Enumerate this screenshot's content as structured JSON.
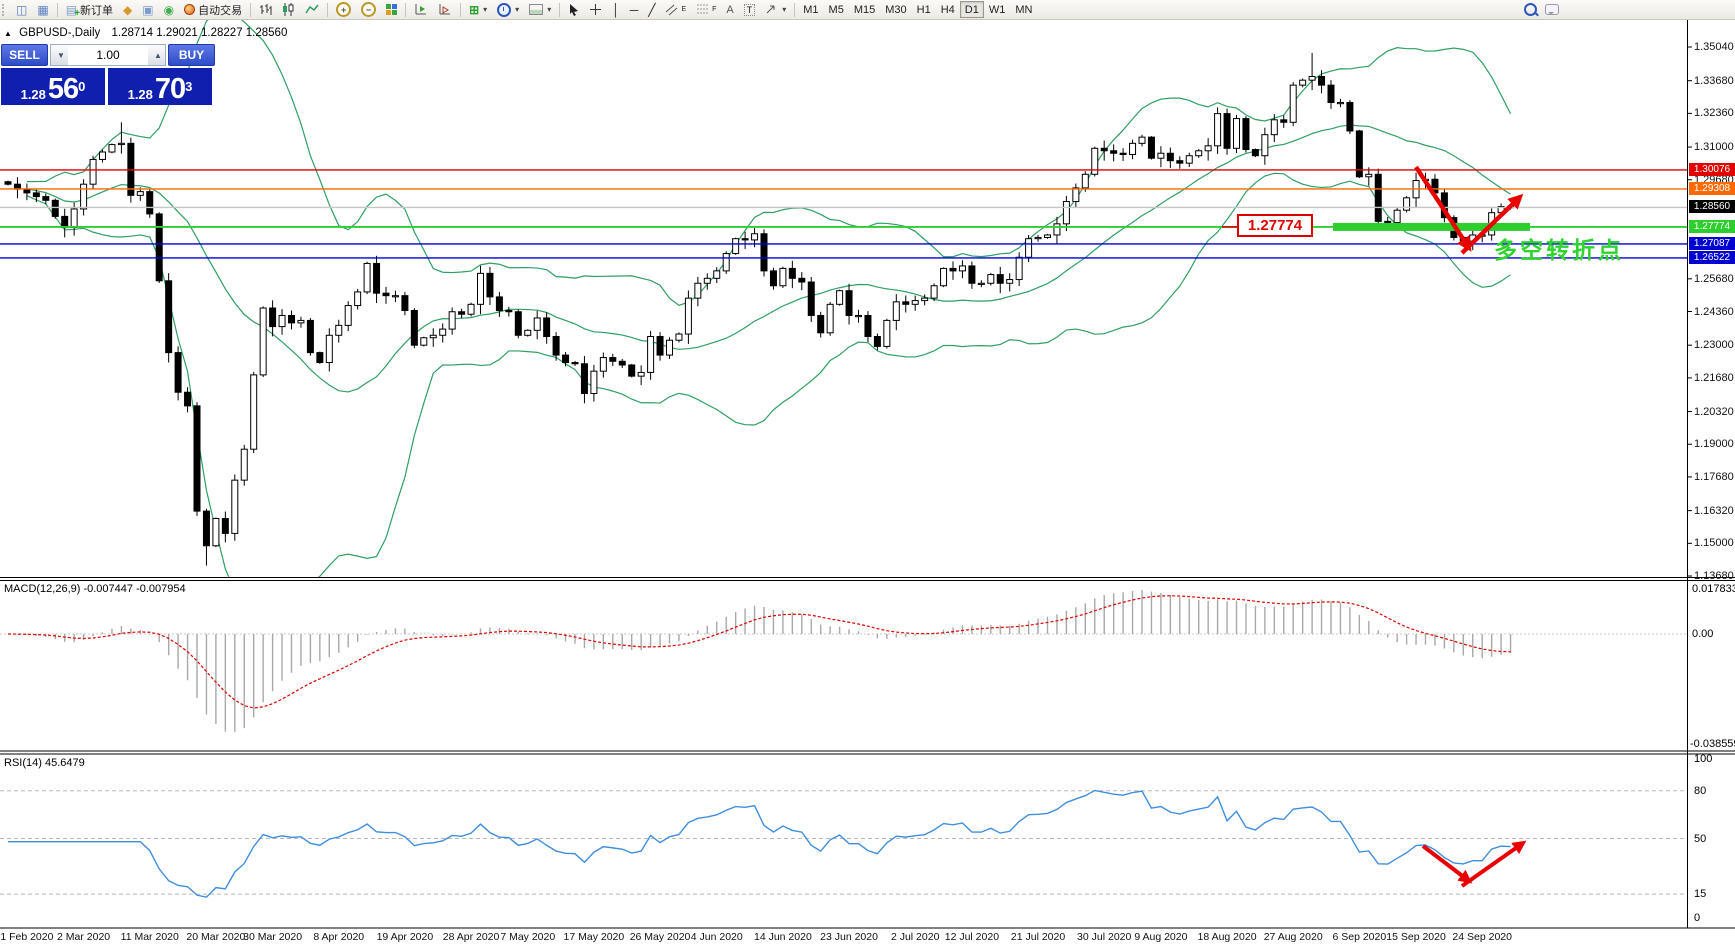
{
  "toolbar": {
    "new_order_label": "新订单",
    "auto_trading_label": "自动交易",
    "timeframes": [
      "M1",
      "M5",
      "M15",
      "M30",
      "H1",
      "H4",
      "D1",
      "W1",
      "MN"
    ],
    "active_timeframe": "D1",
    "drawing_channel_letter": "E",
    "drawing_fibo_letter": "F",
    "drawing_text_letter": "A",
    "drawing_label_letter": "T"
  },
  "quote_panel": {
    "symbol_title": "GBPUSD-,Daily",
    "ohlc_line": "1.28714 1.29021 1.28227 1.28560",
    "sell_label": "SELL",
    "buy_label": "BUY",
    "volume_value": "1.00",
    "sell_price_small": "1.28",
    "sell_price_big": "56",
    "sell_price_sup": "0",
    "buy_price_small": "1.28",
    "buy_price_big": "70",
    "buy_price_sup": "3"
  },
  "main_chart": {
    "y_ticks": [
      "1.35040",
      "1.33680",
      "1.32360",
      "1.31000",
      "1.29680",
      "1.25680",
      "1.24360",
      "1.23000",
      "1.21680",
      "1.20320",
      "1.19000",
      "1.17680",
      "1.16320",
      "1.15000",
      "1.13680"
    ],
    "y_tick_values": [
      1.3504,
      1.3368,
      1.3236,
      1.31,
      1.2968,
      1.2568,
      1.2436,
      1.23,
      1.2168,
      1.2032,
      1.19,
      1.1768,
      1.1632,
      1.15,
      1.1368
    ],
    "price_lines": [
      {
        "label": "1.30076",
        "price": 1.30076,
        "line_color": "#e00000",
        "badge_color": "#e00000"
      },
      {
        "label": "1.29308",
        "price": 1.29308,
        "line_color": "#ff6a00",
        "badge_color": "#ff6a00"
      },
      {
        "label": "1.28560",
        "price": 1.2856,
        "line_color": "#c6c6c6",
        "badge_color": "#000000"
      },
      {
        "label": "1.27774",
        "price": 1.27774,
        "line_color": "#2fce2f",
        "badge_color": "#2fce2f"
      },
      {
        "label": "1.27087",
        "price": 1.27087,
        "line_color": "#0000d0",
        "badge_color": "#0000d0"
      },
      {
        "label": "1.26522",
        "price": 1.26522,
        "line_color": "#0000d0",
        "badge_color": "#0000d0"
      }
    ],
    "callout_label": "1.27774",
    "cn_annotation": "多空转折点",
    "support_bar_color": "#2fce2f",
    "arrow_color": "#e80000"
  },
  "macd_panel": {
    "label": "MACD(12,26,9) -0.007447 -0.007954",
    "max_label": "0.017833",
    "zero_label": "0.00",
    "min_label": "-0.038559"
  },
  "rsi_panel": {
    "label": "RSI(14) 45.6479",
    "levels": [
      "100",
      "80",
      "50",
      "15",
      "0"
    ],
    "level_values": [
      100,
      80,
      50,
      15,
      0
    ],
    "line_color": "#3f8ede"
  },
  "dates": [
    "1 Feb 2020",
    "2 Mar 2020",
    "11 Mar 2020",
    "20 Mar 2020",
    "30 Mar 2020",
    "8 Apr 2020",
    "19 Apr 2020",
    "28 Apr 2020",
    "7 May 2020",
    "17 May 2020",
    "26 May 2020",
    "4 Jun 2020",
    "14 Jun 2020",
    "23 Jun 2020",
    "2 Jul 2020",
    "12 Jul 2020",
    "21 Jul 2020",
    "30 Jul 2020",
    "9 Aug 2020",
    "18 Aug 2020",
    "27 Aug 2020",
    "6 Sep 2020",
    "15 Sep 2020",
    "24 Sep 2020"
  ],
  "chart_data": {
    "type": "candlestick",
    "symbol": "GBPUSD",
    "timeframe": "Daily",
    "price_range": [
      1.1368,
      1.3504
    ],
    "indicators": [
      "Bollinger Bands (20,2)",
      "MACD(12,26,9)",
      "RSI(14)"
    ],
    "band_color": "#2f9e63",
    "first_open": 1.296,
    "closes": [
      1.295,
      1.293,
      1.2915,
      1.29,
      1.2885,
      1.282,
      1.2775,
      1.285,
      1.295,
      1.305,
      1.308,
      1.311,
      1.3115,
      1.2905,
      1.292,
      1.283,
      1.256,
      1.227,
      1.211,
      1.2055,
      1.163,
      1.149,
      1.16,
      1.154,
      1.1755,
      1.188,
      1.218,
      1.245,
      1.2375,
      1.242,
      1.239,
      1.24,
      1.227,
      1.223,
      1.234,
      1.238,
      1.246,
      1.2515,
      1.263,
      1.251,
      1.25,
      1.25,
      1.244,
      1.23,
      1.233,
      1.234,
      1.2365,
      1.2435,
      1.2425,
      1.2465,
      1.259,
      1.2495,
      1.244,
      1.2435,
      1.234,
      1.236,
      1.241,
      1.2335,
      1.226,
      1.223,
      1.2225,
      1.2105,
      1.2195,
      1.225,
      1.2235,
      1.222,
      1.2175,
      1.219,
      1.2335,
      1.226,
      1.232,
      1.2345,
      1.249,
      1.255,
      1.257,
      1.26,
      1.267,
      1.273,
      1.2725,
      1.275,
      1.26,
      1.254,
      1.261,
      1.257,
      1.2555,
      1.242,
      1.235,
      1.2465,
      1.252,
      1.242,
      1.242,
      1.2335,
      1.2295,
      1.24,
      1.2475,
      1.2465,
      1.248,
      1.249,
      1.254,
      1.261,
      1.26,
      1.262,
      1.255,
      1.255,
      1.2585,
      1.255,
      1.2565,
      1.2655,
      1.273,
      1.2735,
      1.2745,
      1.279,
      1.288,
      1.2935,
      1.299,
      1.3095,
      1.3085,
      1.3075,
      1.307,
      1.3115,
      1.314,
      1.3055,
      1.3075,
      1.3045,
      1.3035,
      1.3065,
      1.3085,
      1.3105,
      1.3235,
      1.3095,
      1.3215,
      1.309,
      1.3065,
      1.315,
      1.321,
      1.32,
      1.335,
      1.337,
      1.3385,
      1.335,
      1.328,
      1.328,
      1.3165,
      1.298,
      1.299,
      1.28,
      1.2795,
      1.2845,
      1.2895,
      1.2965,
      1.297,
      1.2915,
      1.2815,
      1.2735,
      1.272,
      1.2745,
      1.2745,
      1.2835,
      1.286,
      1.2856
    ],
    "wick_overrides": {
      "12": {
        "high": 1.32
      },
      "21": {
        "low": 1.141
      },
      "138": {
        "high": 1.348
      }
    }
  }
}
